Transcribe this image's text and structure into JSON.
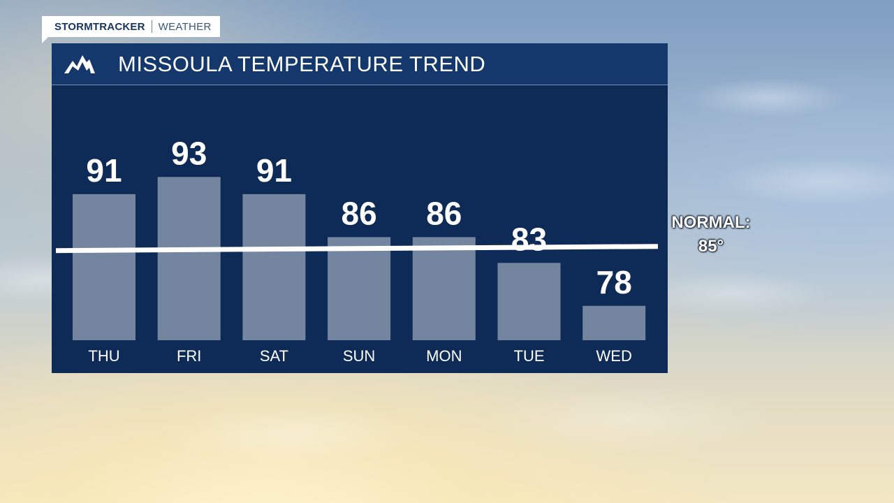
{
  "brand": {
    "primary": "STORMTRACKER",
    "secondary": "WEATHER"
  },
  "header": {
    "title": "MISSOULA TEMPERATURE TREND",
    "logo_icon": "mountain-icon"
  },
  "normal": {
    "label": "NORMAL:",
    "value_text": "85°"
  },
  "colors": {
    "panel": "#0e2a56",
    "header": "#15386c",
    "bar": "#74859f",
    "normal_line": "#ffffff",
    "text": "#ffffff"
  },
  "chart_data": {
    "type": "bar",
    "title": "MISSOULA TEMPERATURE TREND",
    "categories": [
      "THU",
      "FRI",
      "SAT",
      "SUN",
      "MON",
      "TUE",
      "WED"
    ],
    "values": [
      91,
      93,
      91,
      86,
      86,
      83,
      78
    ],
    "value_labels": [
      "91",
      "93",
      "91",
      "86",
      "86",
      "83",
      "78"
    ],
    "reference_line": {
      "label": "NORMAL:",
      "value": 85
    },
    "ylim": [
      74,
      100
    ],
    "grid": false,
    "legend": "none"
  }
}
